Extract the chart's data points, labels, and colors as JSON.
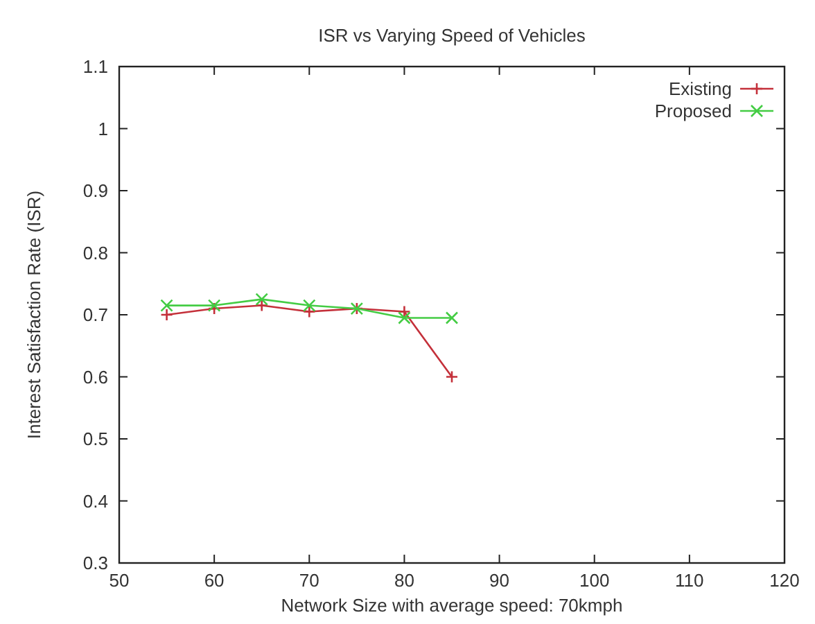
{
  "chart_data": {
    "type": "line",
    "title": "ISR vs Varying Speed of Vehicles",
    "xlabel": "Network Size with average speed: 70kmph",
    "ylabel": "Interest Satisfaction Rate (ISR)",
    "x": [
      55,
      60,
      65,
      70,
      75,
      80,
      85
    ],
    "series": [
      {
        "name": "Existing",
        "color": "#c4303a",
        "marker": "plus",
        "values": [
          0.7,
          0.71,
          0.715,
          0.705,
          0.71,
          0.705,
          0.6
        ]
      },
      {
        "name": "Proposed",
        "color": "#44cc44",
        "marker": "cross",
        "values": [
          0.715,
          0.715,
          0.725,
          0.715,
          0.71,
          0.695,
          0.695
        ]
      }
    ],
    "xlim": [
      50,
      120
    ],
    "xticks": [
      50,
      60,
      70,
      80,
      90,
      100,
      110,
      120
    ],
    "ylim": [
      0.3,
      1.1
    ],
    "yticks": [
      0.3,
      0.4,
      0.5,
      0.6,
      0.7,
      0.8,
      0.9,
      1,
      1.1
    ],
    "grid": false,
    "legend": "top right",
    "line_style": "solid"
  }
}
